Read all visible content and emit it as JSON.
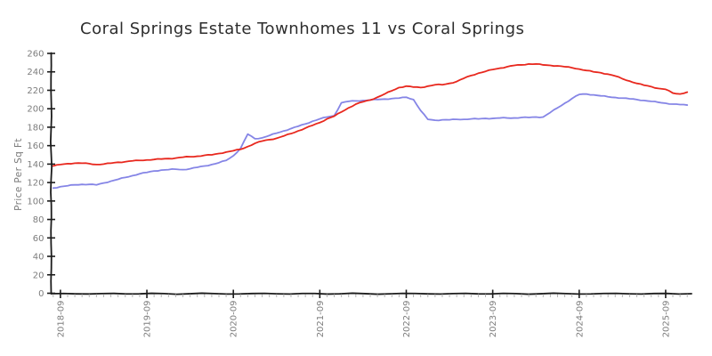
{
  "title": "Coral Springs Estate Townhomes 11 vs Coral Springs",
  "colors": {
    "townhomes_line": "#8585e6",
    "city_line": "#e8281e",
    "spine": "#1c1c1c",
    "tick_label": "#7d7d7d",
    "minor_tick": "#b5b5b5",
    "title_text": "#2d2d2d"
  },
  "chart_data": {
    "type": "line",
    "title": "Coral Springs Estate Townhomes 11 vs Coral Springs",
    "xlabel": "",
    "ylabel": "Price Per Sq Ft",
    "ylim": [
      0,
      260
    ],
    "yticks": [
      0,
      20,
      40,
      60,
      80,
      100,
      120,
      140,
      160,
      180,
      200,
      220,
      240,
      260
    ],
    "xticks": [
      "2018-09",
      "2019-09",
      "2020-09",
      "2021-09",
      "2022-09",
      "2023-09",
      "2024-09",
      "2025-09"
    ],
    "x_interval": "monthly",
    "grid": false,
    "legend_position": "none",
    "style": "xkcd",
    "x": [
      "2018-08",
      "2018-09",
      "2018-10",
      "2018-11",
      "2018-12",
      "2019-01",
      "2019-02",
      "2019-03",
      "2019-04",
      "2019-05",
      "2019-06",
      "2019-07",
      "2019-08",
      "2019-09",
      "2019-10",
      "2019-11",
      "2019-12",
      "2020-01",
      "2020-02",
      "2020-03",
      "2020-04",
      "2020-05",
      "2020-06",
      "2020-07",
      "2020-08",
      "2020-09",
      "2020-10",
      "2020-11",
      "2020-12",
      "2021-01",
      "2021-02",
      "2021-03",
      "2021-04",
      "2021-05",
      "2021-06",
      "2021-07",
      "2021-08",
      "2021-09",
      "2021-10",
      "2021-11",
      "2021-12",
      "2022-01",
      "2022-02",
      "2022-03",
      "2022-04",
      "2022-05",
      "2022-06",
      "2022-07",
      "2022-08",
      "2022-09",
      "2022-10",
      "2022-11",
      "2022-12",
      "2023-01",
      "2023-02",
      "2023-03",
      "2023-04",
      "2023-05",
      "2023-06",
      "2023-07",
      "2023-08",
      "2023-09",
      "2023-10",
      "2023-11",
      "2023-12",
      "2024-01",
      "2024-02",
      "2024-03",
      "2024-04",
      "2024-05",
      "2024-06",
      "2024-07",
      "2024-08",
      "2024-09",
      "2024-10",
      "2024-11",
      "2024-12",
      "2025-01",
      "2025-02",
      "2025-03",
      "2025-04",
      "2025-05",
      "2025-06",
      "2025-07",
      "2025-08",
      "2025-09",
      "2025-10",
      "2025-11",
      "2025-12"
    ],
    "series": [
      {
        "name": "Coral Springs Estate Townhomes 11",
        "color": "#8585e6",
        "values": [
          114,
          115.5,
          116.5,
          117.5,
          118,
          118,
          117.5,
          119.5,
          121.5,
          123.5,
          125.5,
          127.5,
          129.5,
          131,
          132.5,
          133.5,
          134,
          134.5,
          134,
          135,
          136.5,
          138,
          139.5,
          141.5,
          144,
          149,
          157,
          172.5,
          167.5,
          168.5,
          171,
          173.5,
          176,
          178.5,
          181,
          183.5,
          186.5,
          189,
          191,
          192.5,
          206.5,
          208,
          208.5,
          209,
          209.5,
          210,
          210.5,
          211,
          211.5,
          212.5,
          210,
          198,
          188.5,
          187.5,
          188,
          188,
          188.5,
          188.5,
          189,
          189,
          189.5,
          189.5,
          190,
          190,
          190,
          190.5,
          190.5,
          191,
          191,
          196,
          201,
          206,
          211,
          215.5,
          216,
          215,
          214,
          213,
          212.2,
          211.5,
          210.8,
          210,
          209,
          208,
          207,
          206,
          205,
          204.5,
          204
        ]
      },
      {
        "name": "Coral Springs",
        "color": "#e8281e",
        "values": [
          138,
          139.5,
          140.5,
          141,
          141,
          140.5,
          139.5,
          140,
          141,
          142,
          142.5,
          143.5,
          144,
          144.5,
          145,
          145.5,
          146,
          146.5,
          147.5,
          148,
          148.5,
          149.5,
          150,
          151.5,
          153,
          154.5,
          156,
          159,
          162.5,
          165,
          166.5,
          168,
          170.5,
          173,
          176,
          179,
          182,
          185,
          189,
          192,
          196.5,
          201,
          205,
          207.5,
          209.5,
          212.5,
          216,
          219.5,
          223,
          224.5,
          223.5,
          223,
          224.5,
          226,
          226,
          227.5,
          229.5,
          233,
          236,
          238.5,
          240.5,
          242.5,
          244,
          245.5,
          247,
          247.5,
          248.5,
          248.5,
          247.5,
          247,
          246.5,
          245.5,
          244.5,
          243,
          241.5,
          240,
          239,
          237.5,
          235.5,
          232.5,
          230,
          227.5,
          225.5,
          224,
          222,
          221,
          217,
          216,
          218
        ]
      }
    ]
  }
}
